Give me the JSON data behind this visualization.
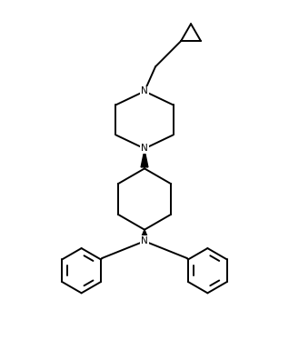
{
  "background_color": "#ffffff",
  "line_color": "#000000",
  "line_width": 1.4,
  "font_size": 7.5,
  "figsize": [
    3.18,
    3.96
  ],
  "dpi": 100,
  "xlim": [
    0,
    10
  ],
  "ylim": [
    0,
    13
  ]
}
